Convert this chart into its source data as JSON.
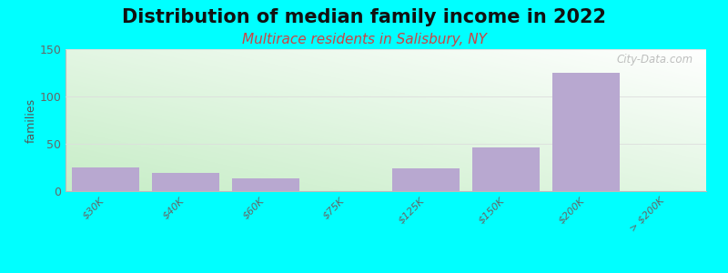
{
  "title": "Distribution of median family income in 2022",
  "subtitle": "Multirace residents in Salisbury, NY",
  "categories": [
    "$30K",
    "$40K",
    "$60K",
    "$75K",
    "$125K",
    "$150K",
    "$200K",
    "> $200K"
  ],
  "values": [
    25,
    19,
    13,
    0,
    24,
    46,
    125,
    0
  ],
  "bar_color": "#b8a8d0",
  "bg_color_topleft": "#c8eec8",
  "bg_color_bottomleft": "#d8f5d8",
  "bg_color_topright": "#e8f8f0",
  "bg_color_bottomright": "#f0faf4",
  "outer_bg": "#00ffff",
  "ylabel": "families",
  "ylim": [
    0,
    150
  ],
  "yticks": [
    0,
    50,
    100,
    150
  ],
  "watermark": "City-Data.com",
  "title_fontsize": 15,
  "subtitle_fontsize": 11,
  "subtitle_color": "#cc4444",
  "tick_label_fontsize": 8,
  "grid_color": "#dddddd"
}
